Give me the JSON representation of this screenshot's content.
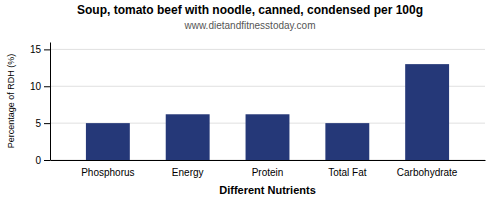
{
  "chart_data": {
    "type": "bar",
    "title": "Soup, tomato beef with noodle, canned, condensed per 100g",
    "subtitle": "www.dietandfitnesstoday.com",
    "categories": [
      "Phosphorus",
      "Energy",
      "Protein",
      "Total Fat",
      "Carbohydrate"
    ],
    "values": [
      5.0,
      6.2,
      6.2,
      5.0,
      13.0
    ],
    "color": "#253878",
    "xlabel": "Different Nutrients",
    "ylabel": "Percentage of RDH (%)",
    "ylim": [
      0,
      16
    ],
    "yticks": [
      0,
      5,
      10,
      15
    ],
    "grid": true
  }
}
